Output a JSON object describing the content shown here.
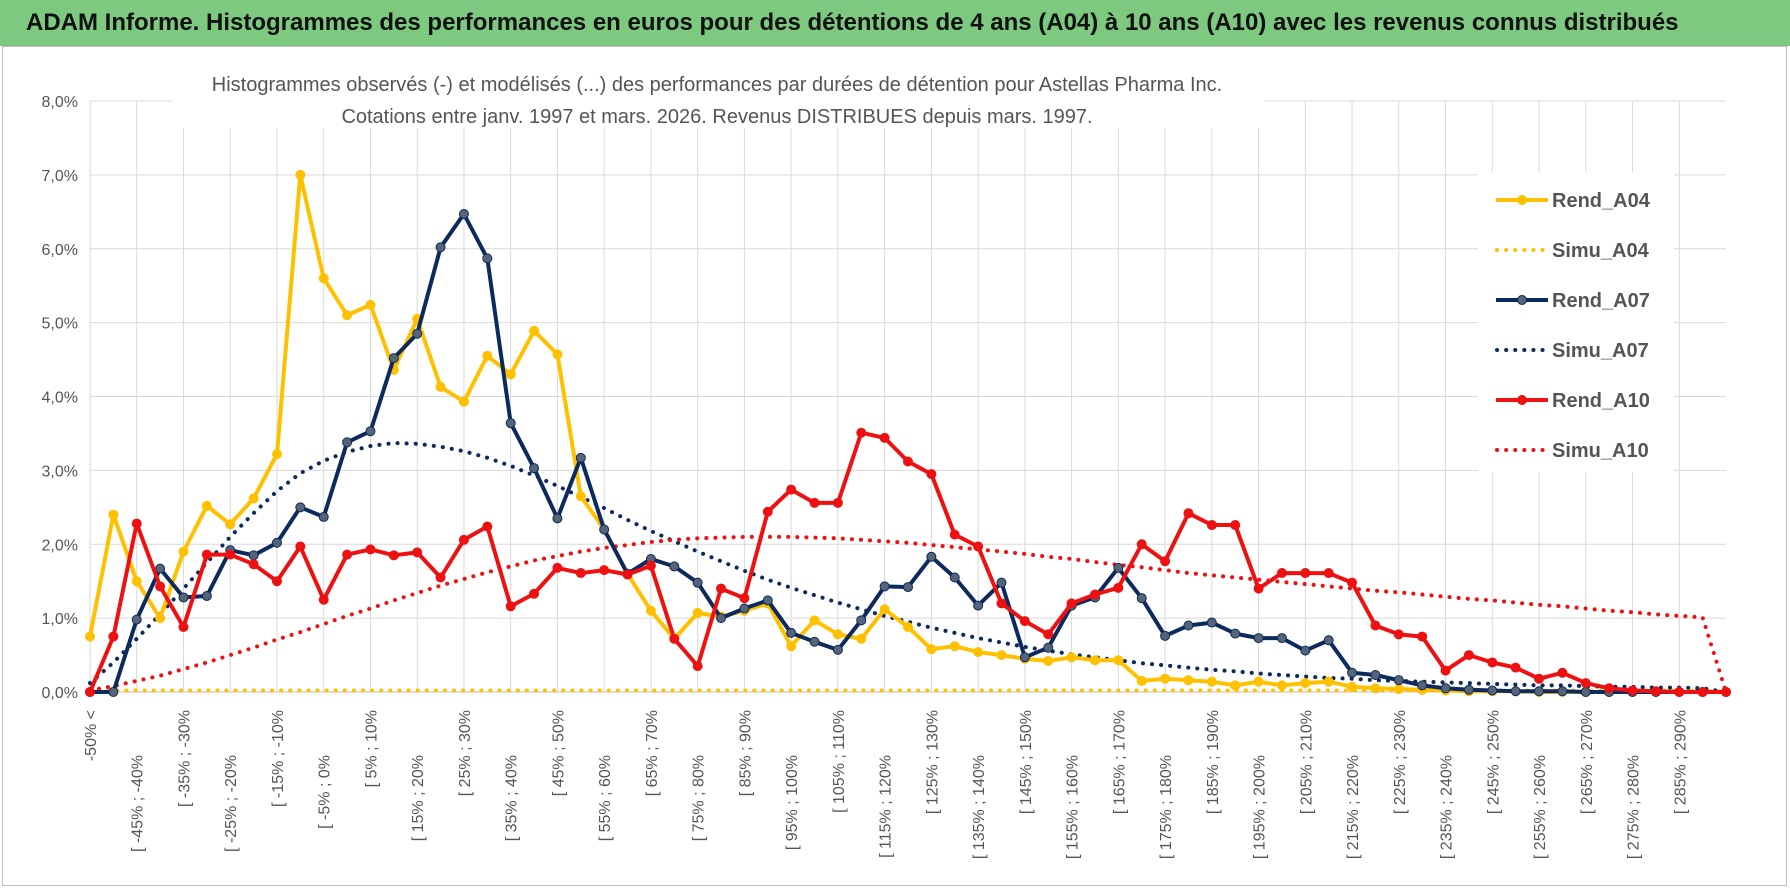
{
  "header": {
    "title": "ADAM Informe. Histogrammes des performances en euros pour des détentions de 4 ans (A04) à 10 ans (A10) avec les revenus connus distribués"
  },
  "chart_data": {
    "type": "line",
    "title_line1": "Histogrammes observés (-) et modélisés (...) des performances par durées de détention pour Astellas Pharma Inc.",
    "title_line2": "Cotations entre janv. 1997 et mars. 2026. Revenus DISTRIBUES depuis mars. 1997.",
    "ylim": [
      0,
      8
    ],
    "yticks": [
      "0,0%",
      "1,0%",
      "2,0%",
      "3,0%",
      "4,0%",
      "5,0%",
      "6,0%",
      "7,0%",
      "8,0%"
    ],
    "category_labels": [
      "-50% <",
      "[ -45% ; -40%",
      "[ -35% ; -30%",
      "[ -25% ; -20%",
      "[ -15% ; -10%",
      "[ -5% ; 0%",
      "[ 5% ; 10%",
      "[ 15% ; 20%",
      "[ 25% ; 30%",
      "[ 35% ; 40%",
      "[ 45% ; 50%",
      "[ 55% ; 60%",
      "[ 65% ; 70%",
      "[ 75% ; 80%",
      "[ 85% ; 90%",
      "[ 95% ; 100%",
      "[ 105% ; 110%",
      "[ 115% ; 120%",
      "[ 125% ; 130%",
      "[ 135% ; 140%",
      "[ 145% ; 150%",
      "[ 155% ; 160%",
      "[ 165% ; 170%",
      "[ 175% ; 180%",
      "[ 185% ; 190%",
      "[ 195% ; 200%",
      "[ 205% ; 210%",
      "[ 215% ; 220%",
      "[ 225% ; 230%",
      "[ 235% ; 240%",
      "[ 245% ; 250%",
      "[ 255% ; 260%",
      "[ 265% ; 270%",
      "[ 275% ; 280%",
      "[ 285% ; 290%"
    ],
    "n_points": 71,
    "series": [
      {
        "name": "Rend_A04",
        "color": "#ffc000",
        "style": "solid",
        "marker": true,
        "values": [
          0.75,
          2.4,
          1.5,
          1.0,
          1.9,
          2.52,
          2.27,
          2.62,
          3.22,
          7.0,
          5.6,
          5.1,
          5.24,
          4.36,
          5.05,
          4.13,
          3.93,
          4.55,
          4.3,
          4.89,
          4.57,
          2.65,
          2.2,
          1.6,
          1.1,
          0.72,
          1.07,
          1.02,
          1.1,
          1.2,
          0.62,
          0.97,
          0.78,
          0.72,
          1.12,
          0.88,
          0.58,
          0.62,
          0.54,
          0.5,
          0.45,
          0.42,
          0.47,
          0.43,
          0.43,
          0.15,
          0.18,
          0.16,
          0.14,
          0.09,
          0.14,
          0.09,
          0.12,
          0.14,
          0.07,
          0.05,
          0.04,
          0.03,
          0.02,
          0.01,
          0.01,
          0.01,
          0.0,
          0.0,
          0.0,
          0.0,
          0.0,
          0.0,
          0.0,
          0.0,
          0.0
        ]
      },
      {
        "name": "Simu_A04",
        "color": "#ffc000",
        "style": "dotted",
        "marker": false,
        "values": [
          0.02,
          0.02,
          0.02,
          0.02,
          0.02,
          0.02,
          0.02,
          0.02,
          0.02,
          0.02,
          0.02,
          0.02,
          0.02,
          0.02,
          0.02,
          0.02,
          0.02,
          0.02,
          0.02,
          0.02,
          0.02,
          0.02,
          0.02,
          0.02,
          0.02,
          0.02,
          0.02,
          0.02,
          0.02,
          0.02,
          0.02,
          0.02,
          0.02,
          0.02,
          0.02,
          0.02,
          0.02,
          0.02,
          0.02,
          0.02,
          0.02,
          0.02,
          0.02,
          0.02,
          0.02,
          0.02,
          0.02,
          0.02,
          0.02,
          0.02,
          0.02,
          0.02,
          0.02,
          0.02,
          0.02,
          0.02,
          0.02,
          0.02,
          0.02,
          0.02,
          0.02,
          0.02,
          0.02,
          0.02,
          0.02,
          0.02,
          0.02,
          0.02,
          0.02,
          0.02,
          0.0
        ]
      },
      {
        "name": "Rend_A07",
        "color": "#0d2a5e",
        "style": "solid",
        "marker": true,
        "values": [
          0.0,
          0.0,
          0.98,
          1.67,
          1.28,
          1.3,
          1.92,
          1.85,
          2.02,
          2.5,
          2.37,
          3.38,
          3.53,
          4.52,
          4.85,
          6.02,
          6.47,
          5.87,
          3.64,
          3.03,
          2.35,
          3.17,
          2.2,
          1.6,
          1.8,
          1.7,
          1.48,
          1.0,
          1.13,
          1.24,
          0.8,
          0.68,
          0.57,
          0.97,
          1.43,
          1.42,
          1.83,
          1.55,
          1.17,
          1.48,
          0.47,
          0.6,
          1.17,
          1.28,
          1.68,
          1.27,
          0.76,
          0.9,
          0.94,
          0.79,
          0.73,
          0.73,
          0.56,
          0.7,
          0.26,
          0.23,
          0.16,
          0.09,
          0.05,
          0.03,
          0.02,
          0.01,
          0.01,
          0.01,
          0.0,
          0.0,
          0.0,
          0.0,
          0.0,
          0.0,
          0.0
        ]
      },
      {
        "name": "Simu_A07",
        "color": "#0d2a5e",
        "style": "dotted",
        "marker": false,
        "values": [
          0.12,
          0.4,
          0.72,
          1.05,
          1.4,
          1.75,
          2.1,
          2.42,
          2.72,
          2.96,
          3.13,
          3.25,
          3.33,
          3.37,
          3.36,
          3.32,
          3.26,
          3.17,
          3.06,
          2.93,
          2.79,
          2.64,
          2.49,
          2.33,
          2.18,
          2.04,
          1.9,
          1.77,
          1.64,
          1.52,
          1.41,
          1.31,
          1.21,
          1.12,
          1.03,
          0.95,
          0.87,
          0.8,
          0.73,
          0.67,
          0.61,
          0.56,
          0.51,
          0.47,
          0.43,
          0.39,
          0.36,
          0.33,
          0.3,
          0.28,
          0.25,
          0.23,
          0.21,
          0.19,
          0.18,
          0.16,
          0.15,
          0.14,
          0.13,
          0.12,
          0.11,
          0.1,
          0.09,
          0.09,
          0.08,
          0.07,
          0.07,
          0.06,
          0.06,
          0.05,
          0.0
        ]
      },
      {
        "name": "Rend_A10",
        "color": "#ee1111",
        "style": "solid",
        "marker": true,
        "values": [
          0.0,
          0.75,
          2.28,
          1.43,
          0.88,
          1.86,
          1.86,
          1.73,
          1.5,
          1.97,
          1.25,
          1.86,
          1.93,
          1.85,
          1.89,
          1.55,
          2.06,
          2.24,
          1.16,
          1.33,
          1.68,
          1.61,
          1.65,
          1.59,
          1.71,
          0.72,
          0.35,
          1.4,
          1.27,
          2.44,
          2.74,
          2.56,
          2.56,
          3.51,
          3.44,
          3.12,
          2.95,
          2.13,
          1.97,
          1.2,
          0.96,
          0.78,
          1.2,
          1.32,
          1.41,
          2.0,
          1.77,
          2.42,
          2.26,
          2.26,
          1.4,
          1.61,
          1.61,
          1.61,
          1.48,
          0.9,
          0.78,
          0.75,
          0.29,
          0.5,
          0.4,
          0.33,
          0.18,
          0.26,
          0.12,
          0.05,
          0.02,
          0.01,
          0.0,
          0.0,
          0.0
        ]
      },
      {
        "name": "Simu_A10",
        "color": "#ee1111",
        "style": "dotted",
        "marker": false,
        "values": [
          0.02,
          0.08,
          0.15,
          0.22,
          0.31,
          0.4,
          0.5,
          0.6,
          0.71,
          0.81,
          0.92,
          1.03,
          1.13,
          1.24,
          1.34,
          1.44,
          1.53,
          1.62,
          1.7,
          1.78,
          1.84,
          1.9,
          1.95,
          1.99,
          2.03,
          2.06,
          2.08,
          2.09,
          2.1,
          2.1,
          2.1,
          2.09,
          2.08,
          2.06,
          2.04,
          2.02,
          1.99,
          1.96,
          1.93,
          1.9,
          1.87,
          1.83,
          1.8,
          1.76,
          1.72,
          1.69,
          1.65,
          1.61,
          1.58,
          1.55,
          1.52,
          1.49,
          1.46,
          1.43,
          1.4,
          1.37,
          1.35,
          1.32,
          1.29,
          1.26,
          1.24,
          1.21,
          1.18,
          1.16,
          1.13,
          1.1,
          1.08,
          1.05,
          1.03,
          1.01,
          0.0
        ]
      }
    ],
    "legend_position": "top-right"
  }
}
